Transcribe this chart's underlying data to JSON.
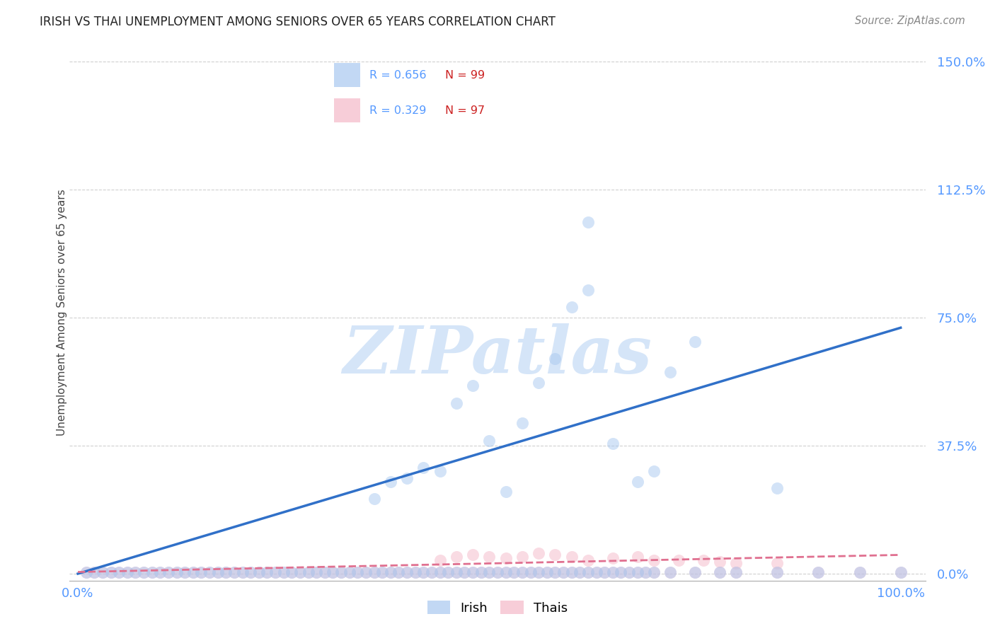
{
  "title": "IRISH VS THAI UNEMPLOYMENT AMONG SENIORS OVER 65 YEARS CORRELATION CHART",
  "source": "Source: ZipAtlas.com",
  "ylabel": "Unemployment Among Seniors over 65 years",
  "xlim": [
    -0.01,
    1.03
  ],
  "ylim": [
    -0.02,
    1.55
  ],
  "yticks": [
    0.0,
    0.375,
    0.75,
    1.125,
    1.5
  ],
  "ytick_labels": [
    "0.0%",
    "37.5%",
    "75.0%",
    "112.5%",
    "150.0%"
  ],
  "xtick_labels": [
    "0.0%",
    "100.0%"
  ],
  "xtick_pos": [
    0.0,
    1.0
  ],
  "irish_color": "#a8c8f0",
  "thai_color": "#f5b8c8",
  "irish_line_color": "#3070c8",
  "thai_line_color": "#e07090",
  "watermark_color": "#d5e5f8",
  "grid_color": "#d0d0d0",
  "background_color": "#ffffff",
  "tick_color": "#5599ff",
  "title_color": "#222222",
  "source_color": "#888888",
  "legend_border_color": "#cccccc",
  "irish_x": [
    0.01,
    0.02,
    0.03,
    0.04,
    0.05,
    0.06,
    0.07,
    0.08,
    0.09,
    0.1,
    0.11,
    0.12,
    0.13,
    0.14,
    0.15,
    0.16,
    0.17,
    0.18,
    0.19,
    0.2,
    0.21,
    0.22,
    0.23,
    0.24,
    0.25,
    0.26,
    0.27,
    0.28,
    0.29,
    0.3,
    0.31,
    0.32,
    0.33,
    0.34,
    0.35,
    0.36,
    0.37,
    0.38,
    0.39,
    0.4,
    0.41,
    0.42,
    0.43,
    0.44,
    0.45,
    0.46,
    0.47,
    0.48,
    0.49,
    0.5,
    0.51,
    0.52,
    0.53,
    0.54,
    0.55,
    0.56,
    0.57,
    0.58,
    0.59,
    0.6,
    0.61,
    0.62,
    0.63,
    0.64,
    0.65,
    0.66,
    0.67,
    0.68,
    0.69,
    0.7,
    0.72,
    0.75,
    0.78,
    0.8,
    0.85,
    0.9,
    0.95,
    1.0,
    0.36,
    0.38,
    0.4,
    0.42,
    0.44,
    0.46,
    0.48,
    0.5,
    0.52,
    0.54,
    0.56,
    0.58,
    0.6,
    0.62,
    0.65,
    0.68,
    0.7,
    0.72,
    0.75,
    0.62,
    0.85
  ],
  "irish_y": [
    0.005,
    0.005,
    0.005,
    0.005,
    0.005,
    0.005,
    0.005,
    0.005,
    0.005,
    0.005,
    0.005,
    0.005,
    0.005,
    0.005,
    0.005,
    0.005,
    0.005,
    0.005,
    0.005,
    0.005,
    0.005,
    0.005,
    0.005,
    0.005,
    0.005,
    0.005,
    0.005,
    0.005,
    0.005,
    0.005,
    0.005,
    0.005,
    0.005,
    0.005,
    0.005,
    0.005,
    0.005,
    0.005,
    0.005,
    0.005,
    0.005,
    0.005,
    0.005,
    0.005,
    0.005,
    0.005,
    0.005,
    0.005,
    0.005,
    0.005,
    0.005,
    0.005,
    0.005,
    0.005,
    0.005,
    0.005,
    0.005,
    0.005,
    0.005,
    0.005,
    0.005,
    0.005,
    0.005,
    0.005,
    0.005,
    0.005,
    0.005,
    0.005,
    0.005,
    0.005,
    0.005,
    0.005,
    0.005,
    0.005,
    0.005,
    0.005,
    0.005,
    0.005,
    0.22,
    0.27,
    0.28,
    0.31,
    0.3,
    0.5,
    0.55,
    0.39,
    0.24,
    0.44,
    0.56,
    0.63,
    0.78,
    0.83,
    0.38,
    0.27,
    0.3,
    0.59,
    0.68,
    1.03,
    0.25
  ],
  "thai_x": [
    0.01,
    0.02,
    0.03,
    0.04,
    0.05,
    0.06,
    0.07,
    0.08,
    0.09,
    0.1,
    0.11,
    0.12,
    0.13,
    0.14,
    0.15,
    0.16,
    0.17,
    0.18,
    0.19,
    0.2,
    0.21,
    0.22,
    0.23,
    0.24,
    0.25,
    0.26,
    0.27,
    0.28,
    0.29,
    0.3,
    0.31,
    0.32,
    0.33,
    0.34,
    0.35,
    0.36,
    0.37,
    0.38,
    0.39,
    0.4,
    0.41,
    0.42,
    0.43,
    0.44,
    0.45,
    0.46,
    0.47,
    0.48,
    0.49,
    0.5,
    0.51,
    0.52,
    0.53,
    0.54,
    0.55,
    0.56,
    0.57,
    0.58,
    0.59,
    0.6,
    0.61,
    0.62,
    0.63,
    0.64,
    0.65,
    0.66,
    0.67,
    0.68,
    0.69,
    0.7,
    0.72,
    0.75,
    0.78,
    0.8,
    0.85,
    0.9,
    0.95,
    1.0,
    0.44,
    0.46,
    0.48,
    0.5,
    0.52,
    0.54,
    0.56,
    0.58,
    0.6,
    0.62,
    0.65,
    0.68,
    0.7,
    0.73,
    0.76,
    0.78,
    0.8,
    0.85
  ],
  "thai_y": [
    0.005,
    0.005,
    0.005,
    0.005,
    0.005,
    0.005,
    0.005,
    0.005,
    0.005,
    0.005,
    0.005,
    0.005,
    0.005,
    0.005,
    0.005,
    0.005,
    0.005,
    0.005,
    0.005,
    0.005,
    0.005,
    0.005,
    0.005,
    0.005,
    0.005,
    0.005,
    0.005,
    0.005,
    0.005,
    0.005,
    0.005,
    0.005,
    0.005,
    0.005,
    0.005,
    0.005,
    0.005,
    0.005,
    0.005,
    0.005,
    0.005,
    0.005,
    0.005,
    0.005,
    0.005,
    0.005,
    0.005,
    0.005,
    0.005,
    0.005,
    0.005,
    0.005,
    0.005,
    0.005,
    0.005,
    0.005,
    0.005,
    0.005,
    0.005,
    0.005,
    0.005,
    0.005,
    0.005,
    0.005,
    0.005,
    0.005,
    0.005,
    0.005,
    0.005,
    0.005,
    0.005,
    0.005,
    0.005,
    0.005,
    0.005,
    0.005,
    0.005,
    0.005,
    0.04,
    0.05,
    0.055,
    0.05,
    0.045,
    0.05,
    0.06,
    0.055,
    0.05,
    0.04,
    0.045,
    0.05,
    0.04,
    0.04,
    0.04,
    0.035,
    0.03,
    0.03
  ],
  "irish_line_x": [
    0.0,
    1.0
  ],
  "irish_line_y": [
    0.0,
    0.72
  ],
  "thai_line_x": [
    0.0,
    1.0
  ],
  "thai_line_y": [
    0.005,
    0.055
  ],
  "watermark": "ZIPatlas"
}
